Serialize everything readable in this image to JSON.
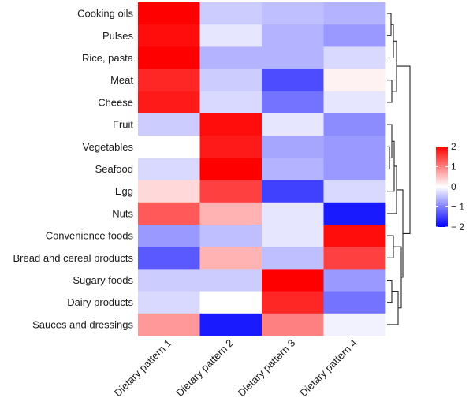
{
  "chart_data": {
    "type": "heatmap",
    "title": "",
    "rows": [
      "Cooking oils",
      "Pulses",
      "Rice, pasta",
      "Meat",
      "Cheese",
      "Fruit",
      "Vegetables",
      "Seafood",
      "Egg",
      "Nuts",
      "Convenience foods",
      "Bread and cereal products",
      "Sugary foods",
      "Dairy products",
      "Sauces and dressings"
    ],
    "columns": [
      "Dietary pattern 1",
      "Dietary pattern 2",
      "Dietary pattern 3",
      "Dietary pattern 4"
    ],
    "values": [
      [
        2.0,
        -0.4,
        -0.5,
        -0.6
      ],
      [
        1.9,
        -0.2,
        -0.6,
        -0.8
      ],
      [
        2.0,
        -0.6,
        -0.6,
        -0.3
      ],
      [
        1.7,
        -0.4,
        -1.4,
        0.1
      ],
      [
        1.8,
        -0.3,
        -1.1,
        -0.2
      ],
      [
        -0.4,
        1.9,
        -0.2,
        -0.9
      ],
      [
        0.0,
        1.8,
        -0.7,
        -0.8
      ],
      [
        -0.3,
        2.0,
        -0.6,
        -0.8
      ],
      [
        0.3,
        1.5,
        -1.5,
        -0.3
      ],
      [
        1.3,
        0.6,
        -0.2,
        -1.8
      ],
      [
        -0.8,
        -0.5,
        -0.2,
        1.9
      ],
      [
        -1.3,
        0.6,
        -0.5,
        1.5
      ],
      [
        -0.4,
        -0.4,
        2.0,
        -0.8
      ],
      [
        -0.3,
        0.0,
        1.7,
        -1.1
      ],
      [
        0.8,
        -1.8,
        1.0,
        -0.1
      ]
    ],
    "color_scale": {
      "low": "#0000FF",
      "mid": "#FFFFFF",
      "high": "#FF0000",
      "min": -2,
      "max": 2
    },
    "legend": {
      "ticks": [
        "2",
        "1",
        "0",
        "− 1",
        "− 2"
      ],
      "tick_values": [
        2,
        1,
        0,
        -1,
        -2
      ],
      "placement": "right"
    },
    "row_dendrogram": true
  }
}
